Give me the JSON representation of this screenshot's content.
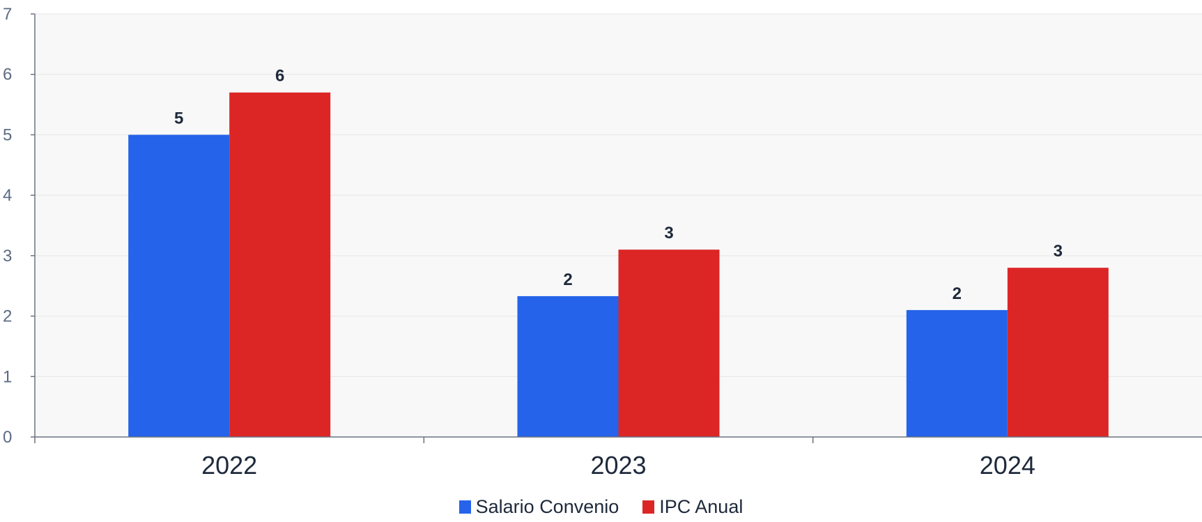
{
  "chart_data": {
    "type": "bar",
    "categories": [
      "2022",
      "2023",
      "2024"
    ],
    "series": [
      {
        "name": "Salario Convenio",
        "values": [
          5.0,
          2.33,
          2.1
        ],
        "labels": [
          "5",
          "2",
          "2"
        ],
        "color": "#2563eb"
      },
      {
        "name": "IPC Anual",
        "values": [
          5.7,
          3.1,
          2.8
        ],
        "labels": [
          "6",
          "3",
          "3"
        ],
        "color": "#dc2626"
      }
    ],
    "yticks": [
      "0",
      "1",
      "2",
      "3",
      "4",
      "5",
      "6",
      "7"
    ],
    "ylim": [
      0,
      7
    ],
    "title": "",
    "xlabel": "",
    "ylabel": "",
    "grid": true,
    "legend_position": "bottom-center",
    "plot_background": "#f8f8f8"
  }
}
